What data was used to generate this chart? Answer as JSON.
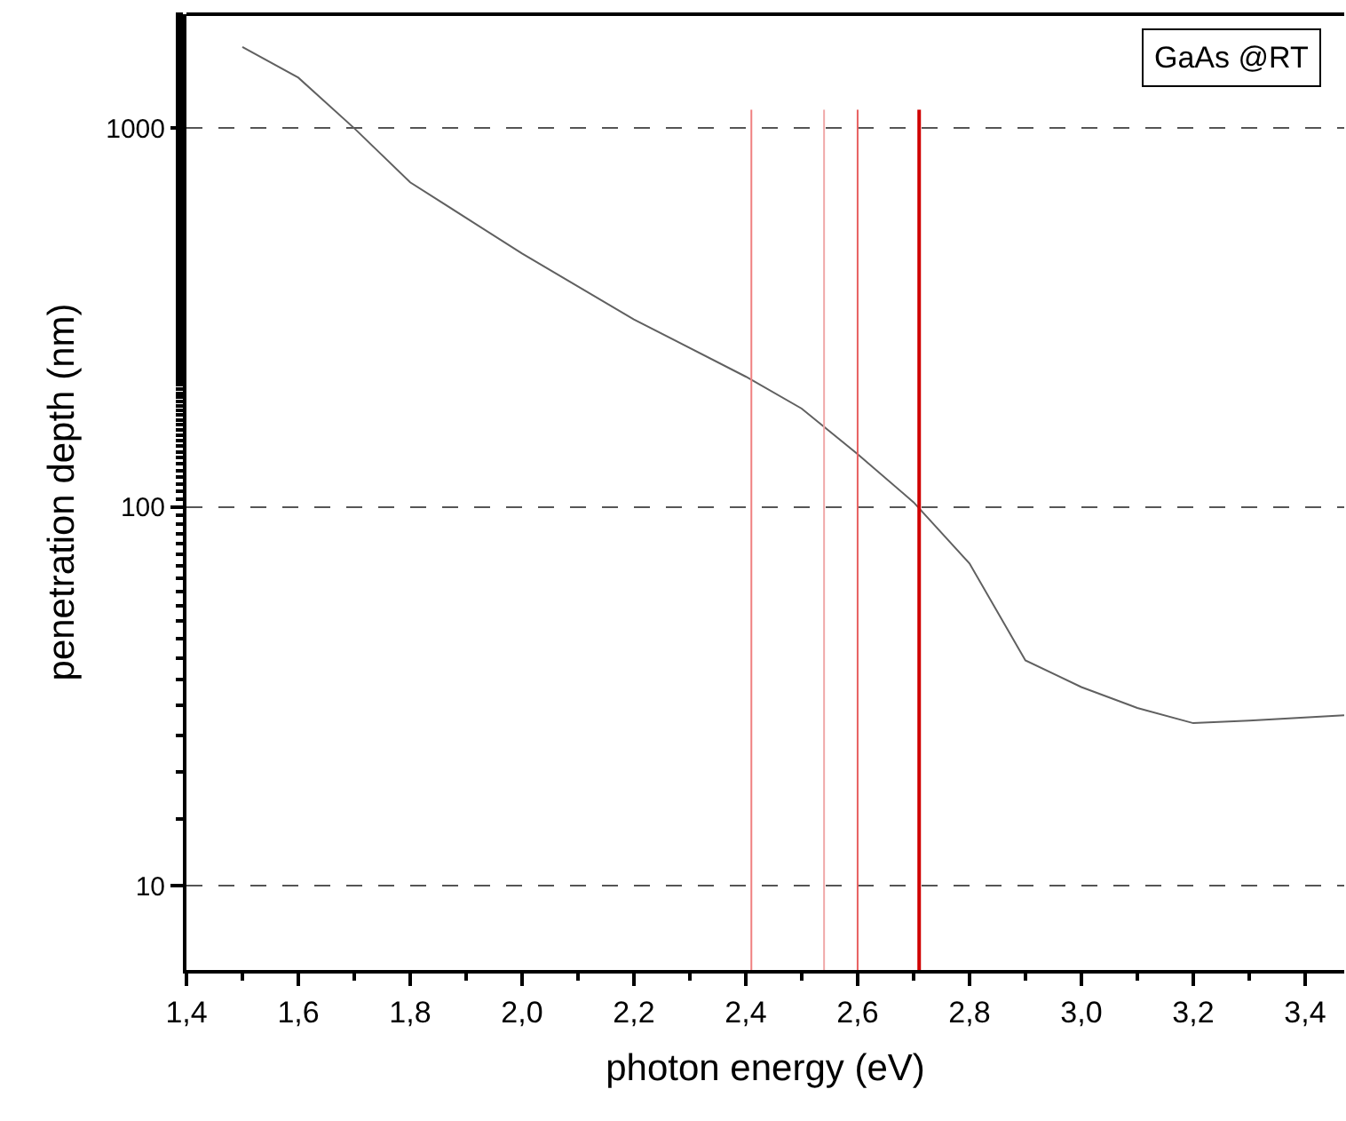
{
  "chart_data": {
    "type": "line",
    "xlabel": "photon energy (eV)",
    "ylabel": "penetration depth (nm)",
    "log": "y",
    "x": [
      1.5,
      1.6,
      1.7,
      1.8,
      2.0,
      2.2,
      2.4,
      2.5,
      2.6,
      2.7,
      2.8,
      2.9,
      3.0,
      3.1,
      3.2,
      3.3,
      3.47
    ],
    "series": [
      {
        "color": "#606060",
        "values": [
          1640,
          1360,
          1000,
          720,
          467,
          313,
          221,
          182,
          138,
          103,
          71,
          39.4,
          33.5,
          29.5,
          26.9,
          27.3,
          28.2
        ]
      }
    ],
    "xlim": [
      1.4,
      3.47
    ],
    "ylim": [
      6,
      2000
    ],
    "xticks": [
      {
        "value": 1.4,
        "label": "1,4"
      },
      {
        "value": 1.6,
        "label": "1,6"
      },
      {
        "value": 1.8,
        "label": "1,8"
      },
      {
        "value": 2.0,
        "label": "2,0"
      },
      {
        "value": 2.2,
        "label": "2,2"
      },
      {
        "value": 2.4,
        "label": "2,4"
      },
      {
        "value": 2.6,
        "label": "2,6"
      },
      {
        "value": 2.8,
        "label": "2,8"
      },
      {
        "value": 3.0,
        "label": "3,0"
      },
      {
        "value": 3.2,
        "label": "3,2"
      },
      {
        "value": 3.4,
        "label": "3,4"
      }
    ],
    "yticks": [
      10,
      100,
      1000
    ],
    "grid": "y",
    "marker": "none",
    "line_style": "solid",
    "annotations": [
      "GaAs @RT"
    ],
    "ref_lines": [
      {
        "axis": "x",
        "value": 2.41,
        "color": "#f08080"
      },
      {
        "axis": "x",
        "value": 2.54,
        "color": "#f0a8a8"
      },
      {
        "axis": "x",
        "value": 2.6,
        "color": "#e86060"
      },
      {
        "axis": "x",
        "value": 2.71,
        "color": "#d00000"
      }
    ]
  }
}
